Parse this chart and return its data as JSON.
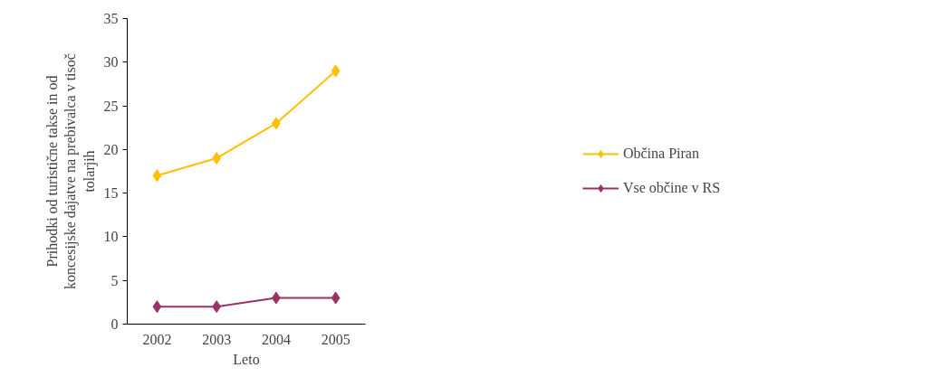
{
  "chart_data": {
    "type": "line",
    "xlabel": "Leto",
    "ylabel": "Prihodki od turistične takse in od koncesijske dajatve na prebivalca v tisoč tolarjih",
    "categories": [
      "2002",
      "2003",
      "2004",
      "2005"
    ],
    "series": [
      {
        "name": "Občina Piran",
        "color": "#ffc000",
        "values": [
          17,
          19,
          23,
          29
        ]
      },
      {
        "name": "Vse občine v RS",
        "color": "#993366",
        "values": [
          2,
          2,
          3,
          3
        ]
      }
    ],
    "ylim": [
      0,
      35
    ],
    "yticks": [
      0,
      5,
      10,
      15,
      20,
      25,
      30,
      35
    ],
    "grid": false,
    "legend": "right",
    "marker": "diamond",
    "line_style": "solid"
  }
}
